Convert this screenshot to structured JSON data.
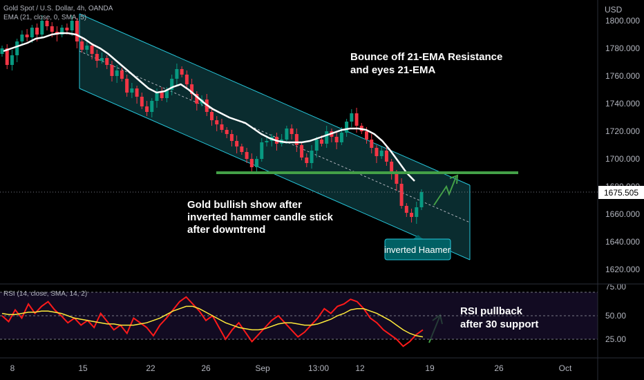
{
  "header": {
    "symbol_line": "Gold Spot / U.S. Dollar, 4h, OANDA",
    "ema_line": "EMA (21, close, 0, SMA, 5)",
    "currency": "USD",
    "rsi_line": "RSI (14, close, SMA, 14, 2)"
  },
  "price_label": "1675.505",
  "annotations": {
    "bounce": [
      "Bounce off 21-EMA Resistance",
      "and eyes 21-EMA"
    ],
    "bullish": [
      "Gold bullish show after",
      "inverted hammer candle stick",
      "after downtrend"
    ],
    "hammer": "inverted Haamer",
    "rsi": [
      "RSI pullback",
      "after 30 support"
    ]
  },
  "colors": {
    "up": "#089981",
    "down": "#f23645",
    "ema": "#ffffff",
    "channel": "#26c6da",
    "support": "#43a047",
    "arrow": "#43a047",
    "rsi": "#ff1a1a",
    "rsi_ma": "#ffeb3b",
    "badge": "#006064"
  },
  "chart_data": [
    {
      "type": "candlestick",
      "title": "Gold Spot / U.S. Dollar, 4h, OANDA",
      "x_ticks": [
        "8",
        "15",
        "22",
        "26",
        "Sep",
        "13:00",
        "12",
        "19",
        "26",
        "Oct"
      ],
      "y_ticks": [
        "1800.000",
        "1780.000",
        "1760.000",
        "1740.000",
        "1720.000",
        "1700.000",
        "1680.000",
        "1660.000",
        "1640.000",
        "1620.000"
      ],
      "ylim": [
        1612,
        1808
      ],
      "support_level": 1690,
      "last_price": 1675.505,
      "close_path": [
        1780,
        1768,
        1775,
        1785,
        1790,
        1788,
        1795,
        1790,
        1800,
        1796,
        1792,
        1790,
        1795,
        1793,
        1800,
        1785,
        1779,
        1782,
        1776,
        1771,
        1773,
        1768,
        1760,
        1764,
        1758,
        1748,
        1751,
        1745,
        1738,
        1734,
        1742,
        1748,
        1744,
        1750,
        1758,
        1765,
        1761,
        1754,
        1747,
        1740,
        1743,
        1734,
        1728,
        1725,
        1721,
        1718,
        1713,
        1709,
        1705,
        1700,
        1694,
        1700,
        1712,
        1713,
        1716,
        1711,
        1714,
        1722,
        1718,
        1710,
        1701,
        1697,
        1706,
        1714,
        1711,
        1720,
        1716,
        1712,
        1719,
        1727,
        1733,
        1724,
        1720,
        1714,
        1708,
        1702,
        1706,
        1698,
        1689,
        1682,
        1666,
        1661,
        1658,
        1665,
        1676
      ],
      "ema21": [
        1778,
        1780,
        1782,
        1784,
        1787,
        1788,
        1790,
        1791,
        1791,
        1790,
        1787,
        1783,
        1780,
        1776,
        1771,
        1766,
        1761,
        1756,
        1751,
        1748,
        1749,
        1752,
        1754,
        1750,
        1745,
        1740,
        1736,
        1733,
        1730,
        1728,
        1726,
        1722,
        1718,
        1715,
        1713,
        1712,
        1712,
        1712,
        1713,
        1715,
        1717,
        1719,
        1721,
        1722,
        1722,
        1721,
        1718,
        1713,
        1706,
        1698,
        1690,
        1684
      ],
      "channel": {
        "upper_start": [
          1800,
          1805
        ],
        "upper_end": [
          1680,
          1697
        ],
        "lower_start": [
          1750,
          1765
        ],
        "lower_end": [
          1630,
          1657
        ]
      }
    },
    {
      "type": "line",
      "title": "RSI (14, close, SMA, 14, 2)",
      "y_ticks": [
        "75.00",
        "50.00",
        "25.00"
      ],
      "ylim": [
        20,
        80
      ],
      "bands": [
        70,
        30
      ],
      "series": [
        {
          "values": [
            50,
            45,
            55,
            48,
            60,
            52,
            58,
            62,
            55,
            50,
            44,
            48,
            42,
            46,
            40,
            52,
            45,
            38,
            42,
            35,
            48,
            44,
            40,
            33,
            42,
            48,
            55,
            62,
            66,
            60,
            54,
            46,
            50,
            40,
            30,
            38,
            44,
            36,
            28,
            34,
            40,
            46,
            50,
            44,
            38,
            32,
            36,
            42,
            48,
            56,
            52,
            58,
            60,
            64,
            62,
            56,
            48,
            44,
            38,
            34,
            30,
            24,
            28,
            34,
            38
          ]
        },
        {
          "values": [
            52,
            51,
            51,
            52,
            53,
            53,
            54,
            54,
            53,
            52,
            50,
            48,
            47,
            46,
            45,
            44,
            43,
            43,
            42,
            42,
            42,
            43,
            44,
            46,
            48,
            51,
            54,
            56,
            58,
            58,
            56,
            53,
            50,
            47,
            44,
            42,
            40,
            39,
            38,
            38,
            39,
            41,
            43,
            44,
            44,
            43,
            42,
            42,
            43,
            45,
            47,
            50,
            52,
            55,
            56,
            56,
            54,
            52,
            49,
            46,
            42,
            38,
            35,
            33,
            32
          ]
        }
      ]
    }
  ]
}
